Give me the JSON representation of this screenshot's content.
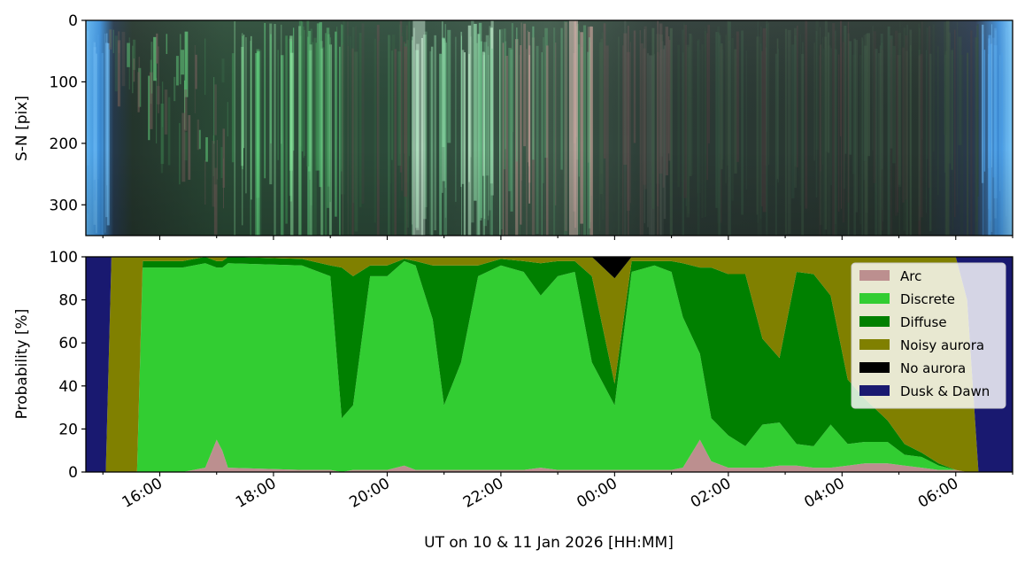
{
  "chart_data": [
    {
      "type": "heatmap",
      "panel": "keogram",
      "ylabel": "S-N [pix]",
      "yticks": [
        0,
        100,
        200,
        300
      ],
      "ylim": [
        350,
        0
      ],
      "xlim_hours": [
        14.7,
        31.0
      ],
      "description_bands": [
        {
          "start": 14.7,
          "end": 15.1,
          "tone": "twilight"
        },
        {
          "start": 15.1,
          "end": 17.2,
          "tone": "green-arc-descending"
        },
        {
          "start": 17.2,
          "end": 19.2,
          "tone": "bright-green-rays"
        },
        {
          "start": 19.2,
          "end": 20.4,
          "tone": "dim-green"
        },
        {
          "start": 20.4,
          "end": 22.0,
          "tone": "bright-pale-green"
        },
        {
          "start": 22.0,
          "end": 23.6,
          "tone": "pink-green-mixed"
        },
        {
          "start": 23.6,
          "end": 25.0,
          "tone": "dim-mixed"
        },
        {
          "start": 25.0,
          "end": 30.4,
          "tone": "dark-diffuse"
        },
        {
          "start": 30.4,
          "end": 31.0,
          "tone": "twilight"
        }
      ]
    },
    {
      "type": "area",
      "panel": "probability",
      "stacked": true,
      "ylabel": "Probability [%]",
      "xlabel": "UT on 10 & 11 Jan 2026 [HH:MM]",
      "ylim": [
        0,
        100
      ],
      "yticks": [
        0,
        20,
        40,
        60,
        80,
        100
      ],
      "xlim_hours": [
        14.7,
        31.0
      ],
      "xtick_labels": [
        {
          "hour": 16,
          "label": "16:00"
        },
        {
          "hour": 18,
          "label": "18:00"
        },
        {
          "hour": 20,
          "label": "20:00"
        },
        {
          "hour": 22,
          "label": "22:00"
        },
        {
          "hour": 24,
          "label": "00:00"
        },
        {
          "hour": 26,
          "label": "02:00"
        },
        {
          "hour": 28,
          "label": "04:00"
        },
        {
          "hour": 30,
          "label": "06:00"
        }
      ],
      "legend_position": "top-right",
      "series": [
        {
          "name": "Arc",
          "color": "#bc8f8f"
        },
        {
          "name": "Discrete",
          "color": "#32cd32"
        },
        {
          "name": "Diffuse",
          "color": "#008000"
        },
        {
          "name": "Noisy aurora",
          "color": "#808000"
        },
        {
          "name": "No aurora",
          "color": "#000000"
        },
        {
          "name": "Dusk & Dawn",
          "color": "#191970"
        }
      ],
      "x": [
        14.7,
        15.05,
        15.15,
        15.6,
        15.7,
        16.4,
        16.8,
        17.0,
        17.1,
        17.2,
        18.5,
        19.0,
        19.2,
        19.4,
        19.7,
        20.0,
        20.3,
        20.5,
        20.8,
        21.0,
        21.3,
        21.6,
        22.0,
        22.4,
        22.7,
        23.0,
        23.3,
        23.6,
        24.0,
        24.3,
        24.7,
        25.0,
        25.2,
        25.5,
        25.7,
        26.0,
        26.3,
        26.6,
        26.9,
        27.2,
        27.5,
        27.8,
        28.1,
        28.4,
        28.8,
        29.1,
        29.4,
        29.7,
        30.0,
        30.2,
        30.4,
        30.6,
        31.0
      ],
      "values": {
        "Arc": [
          0,
          0,
          0,
          0,
          0,
          0,
          2,
          15,
          10,
          2,
          1,
          1,
          0,
          1,
          1,
          1,
          3,
          1,
          1,
          1,
          1,
          1,
          1,
          1,
          2,
          1,
          1,
          1,
          1,
          1,
          1,
          1,
          2,
          15,
          5,
          2,
          2,
          2,
          3,
          3,
          2,
          2,
          3,
          4,
          4,
          3,
          2,
          1,
          1,
          0,
          0,
          0,
          0
        ],
        "Discrete": [
          0,
          0,
          0,
          0,
          95,
          95,
          95,
          80,
          85,
          95,
          95,
          90,
          25,
          30,
          90,
          90,
          95,
          95,
          70,
          30,
          50,
          90,
          95,
          92,
          80,
          90,
          92,
          50,
          30,
          92,
          95,
          92,
          70,
          40,
          20,
          15,
          10,
          20,
          20,
          10,
          10,
          20,
          10,
          10,
          10,
          5,
          5,
          2,
          0,
          0,
          0,
          0,
          0
        ],
        "Diffuse": [
          0,
          0,
          0,
          0,
          3,
          3,
          3,
          3,
          3,
          3,
          3,
          5,
          70,
          60,
          5,
          5,
          1,
          2,
          25,
          65,
          45,
          5,
          3,
          5,
          15,
          7,
          5,
          40,
          10,
          5,
          2,
          5,
          25,
          40,
          70,
          75,
          80,
          40,
          30,
          80,
          80,
          60,
          30,
          20,
          10,
          5,
          2,
          1,
          0,
          0,
          0,
          0,
          0
        ],
        "Noisy aurora": [
          0,
          0,
          100,
          100,
          2,
          2,
          0,
          2,
          2,
          0,
          1,
          4,
          5,
          9,
          4,
          4,
          1,
          2,
          4,
          4,
          4,
          4,
          1,
          2,
          3,
          2,
          2,
          9,
          49,
          2,
          2,
          2,
          3,
          5,
          5,
          8,
          8,
          38,
          47,
          7,
          8,
          18,
          57,
          66,
          76,
          87,
          91,
          96,
          99,
          80,
          0,
          0,
          0
        ],
        "No aurora": [
          0,
          0,
          0,
          0,
          0,
          0,
          0,
          0,
          0,
          0,
          0,
          0,
          0,
          0,
          0,
          0,
          0,
          0,
          0,
          0,
          0,
          0,
          0,
          0,
          0,
          0,
          0,
          0,
          10,
          0,
          0,
          0,
          0,
          0,
          0,
          0,
          0,
          0,
          0,
          0,
          0,
          0,
          0,
          0,
          0,
          0,
          0,
          0,
          0,
          0,
          0,
          0,
          0
        ],
        "Dusk & Dawn": [
          100,
          100,
          0,
          0,
          0,
          0,
          0,
          0,
          0,
          0,
          0,
          0,
          0,
          0,
          0,
          0,
          0,
          0,
          0,
          0,
          0,
          0,
          0,
          0,
          0,
          0,
          0,
          0,
          0,
          0,
          0,
          0,
          0,
          0,
          0,
          0,
          0,
          0,
          0,
          0,
          0,
          0,
          0,
          0,
          0,
          0,
          0,
          0,
          0,
          20,
          100,
          100,
          100
        ]
      }
    }
  ]
}
